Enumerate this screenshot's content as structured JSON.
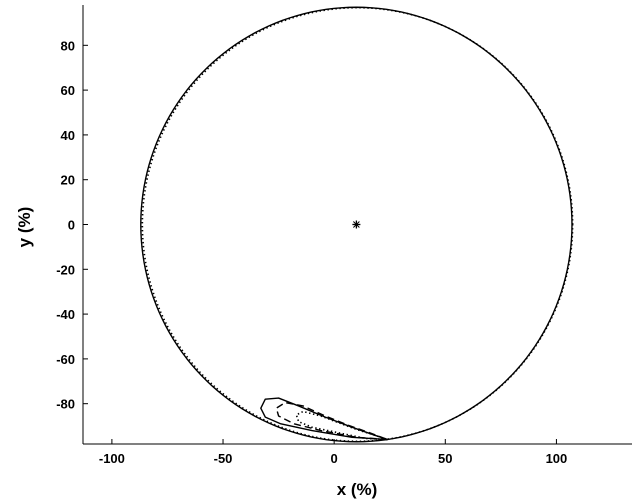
{
  "chart_data": {
    "type": "line",
    "title": "",
    "xlabel": "x (%)",
    "ylabel": "y (%)",
    "xlim": [
      -113,
      134
    ],
    "ylim": [
      -98,
      98
    ],
    "x_ticks": [
      -100,
      -50,
      0,
      50,
      100
    ],
    "y_ticks": [
      -80,
      -60,
      -40,
      -20,
      0,
      20,
      40,
      60,
      80
    ],
    "grid": false,
    "legend": "none",
    "center_marker": {
      "x": 10,
      "y": 0
    },
    "series": [
      {
        "style": "solid",
        "shape": "circle",
        "center": [
          10,
          0
        ],
        "radius": 97
      },
      {
        "style": "dotted",
        "shape": "circle",
        "center": [
          10.5,
          0
        ],
        "radius": 96.8
      },
      {
        "style": "solid",
        "points": [
          [
            24,
            -96
          ],
          [
            8,
            -95
          ],
          [
            -10,
            -92
          ],
          [
            -24,
            -89
          ],
          [
            -31,
            -86
          ],
          [
            -33,
            -82
          ],
          [
            -31,
            -78
          ],
          [
            -25,
            -77.5
          ],
          [
            -16,
            -81
          ],
          [
            -4,
            -86
          ],
          [
            8,
            -90.5
          ],
          [
            18,
            -94
          ],
          [
            24,
            -96
          ]
        ]
      },
      {
        "style": "dashed",
        "points": [
          [
            24,
            -96
          ],
          [
            10,
            -95
          ],
          [
            -6,
            -92
          ],
          [
            -18,
            -89
          ],
          [
            -25,
            -85.5
          ],
          [
            -26,
            -82
          ],
          [
            -22,
            -79.5
          ],
          [
            -14,
            -81
          ],
          [
            -4,
            -85.5
          ],
          [
            6,
            -89.5
          ],
          [
            16,
            -93
          ],
          [
            24,
            -96
          ]
        ]
      },
      {
        "style": "dotted",
        "points": [
          [
            24,
            -96
          ],
          [
            14,
            -95.5
          ],
          [
            2,
            -93
          ],
          [
            -10,
            -90.5
          ],
          [
            -16,
            -88
          ],
          [
            -17,
            -85
          ],
          [
            -14,
            -83.5
          ],
          [
            -6,
            -85.5
          ],
          [
            2,
            -88.5
          ],
          [
            10,
            -91.5
          ],
          [
            18,
            -94
          ],
          [
            24,
            -96
          ]
        ]
      }
    ]
  }
}
